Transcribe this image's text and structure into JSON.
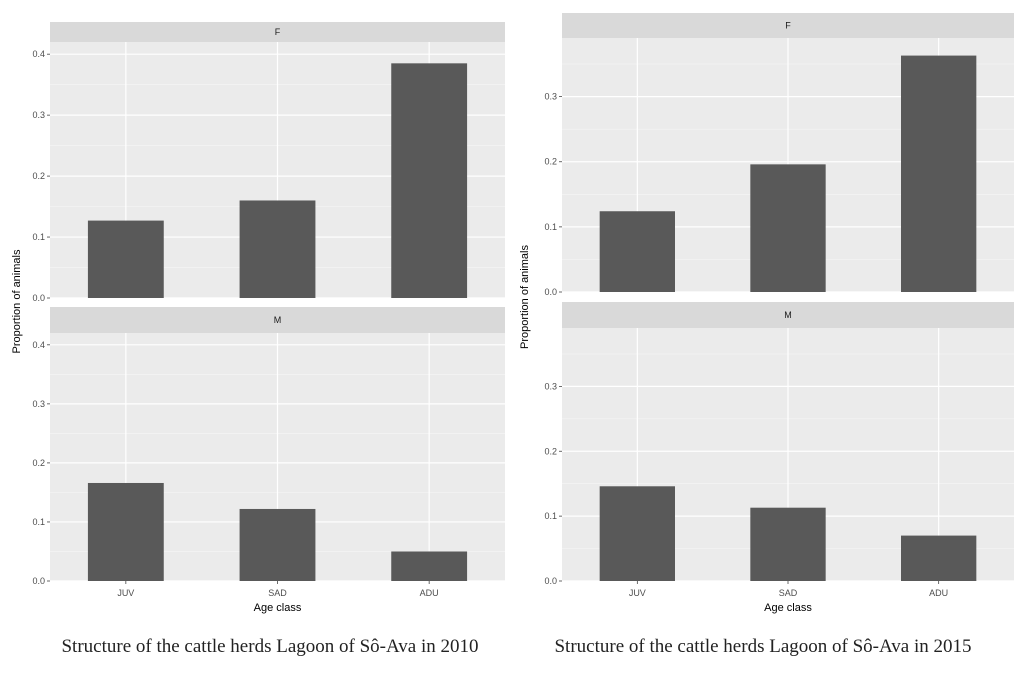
{
  "chart_data": [
    {
      "type": "bar",
      "panels": [
        {
          "strip": "F",
          "categories": [
            "JUV",
            "SAD",
            "ADU"
          ],
          "values": [
            0.127,
            0.16,
            0.385
          ]
        },
        {
          "strip": "M",
          "categories": [
            "JUV",
            "SAD",
            "ADU"
          ],
          "values": [
            0.166,
            0.122,
            0.05
          ]
        }
      ],
      "xlabel": "Age class",
      "ylabel": "Proportion of animals",
      "ylim": [
        0,
        0.42
      ],
      "yticks": [
        "0.0",
        "0.1",
        "0.2",
        "0.3",
        "0.4"
      ],
      "caption": "Structure of the cattle herds Lagoon of Sô-Ava in 2010"
    },
    {
      "type": "bar",
      "panels": [
        {
          "strip": "F",
          "categories": [
            "JUV",
            "SAD",
            "ADU"
          ],
          "values": [
            0.124,
            0.196,
            0.363
          ]
        },
        {
          "strip": "M",
          "categories": [
            "JUV",
            "SAD",
            "ADU"
          ],
          "values": [
            0.146,
            0.113,
            0.07
          ]
        }
      ],
      "xlabel": "Age class",
      "ylabel": "Proportion of animals",
      "ylim": [
        0,
        0.39
      ],
      "yticks": [
        "0.0",
        "0.1",
        "0.2",
        "0.3"
      ],
      "caption": "Structure of the cattle herds Lagoon of Sô-Ava in 2015"
    }
  ],
  "captions": {
    "left": "Structure of the cattle herds Lagoon of Sô-Ava in 2010",
    "right": "Structure of the cattle herds Lagoon of Sô-Ava in 2015"
  }
}
